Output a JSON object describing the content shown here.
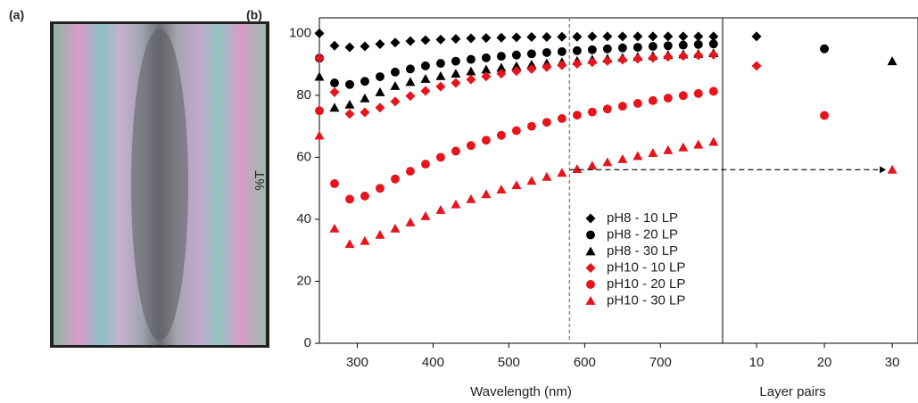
{
  "panel_labels": [
    "(a)",
    "(b)"
  ],
  "chart_data": [
    {
      "type": "scatter",
      "xlabel": "Wavelength (nm)",
      "ylabel": "%T",
      "x": [
        250,
        270,
        290,
        310,
        330,
        350,
        370,
        390,
        410,
        430,
        450,
        470,
        490,
        510,
        530,
        550,
        570,
        590,
        610,
        630,
        650,
        670,
        690,
        710,
        730,
        750,
        770
      ],
      "xlim": [
        250,
        782
      ],
      "ylim": [
        0,
        105
      ],
      "xticks": [
        300,
        400,
        500,
        600,
        700
      ],
      "yticks": [
        0,
        20,
        40,
        60,
        80,
        100
      ],
      "vline_x": 580,
      "arrow_y": 56,
      "series": [
        {
          "name": "pH8 - 10 LP",
          "color": "#000000",
          "marker": "diamond",
          "values": [
            100,
            96,
            95.5,
            95.8,
            96.5,
            97,
            97.5,
            97.8,
            98,
            98.2,
            98.4,
            98.5,
            98.6,
            98.7,
            98.8,
            98.8,
            98.9,
            98.9,
            99,
            99,
            99,
            99,
            99,
            99,
            99,
            99,
            99
          ]
        },
        {
          "name": "pH8 - 20 LP",
          "color": "#000000",
          "marker": "circle",
          "values": [
            92,
            84,
            83.5,
            84.5,
            86,
            87.5,
            88.5,
            89.5,
            90.3,
            91,
            91.6,
            92.1,
            92.6,
            93,
            93.4,
            93.8,
            94.1,
            94.4,
            94.7,
            95,
            95.3,
            95.5,
            95.8,
            96,
            96.2,
            96.4,
            96.6
          ]
        },
        {
          "name": "pH8 - 30 LP",
          "color": "#000000",
          "marker": "triangle",
          "values": [
            86,
            76,
            77,
            79,
            81,
            83,
            84.3,
            85.3,
            86.2,
            87,
            87.7,
            88.3,
            88.9,
            89.4,
            89.9,
            90.3,
            90.7,
            91.1,
            91.5,
            91.8,
            92.1,
            92.4,
            92.7,
            93,
            93.2,
            93.4,
            93.6
          ]
        },
        {
          "name": "pH10 - 10 LP",
          "color": "#e8141b",
          "marker": "diamond",
          "values": [
            92,
            81,
            74,
            74.5,
            76,
            78,
            79.8,
            81.4,
            82.8,
            84,
            85.1,
            86.1,
            87,
            87.8,
            88.5,
            89.1,
            89.7,
            90.2,
            90.7,
            91.1,
            91.5,
            91.8,
            92.1,
            92.4,
            92.7,
            92.9,
            93.1
          ]
        },
        {
          "name": "pH10 - 20 LP",
          "color": "#e8141b",
          "marker": "circle",
          "values": [
            75,
            51.5,
            46.5,
            47.5,
            50,
            53,
            55.5,
            57.8,
            60,
            62,
            63.8,
            65.5,
            67.1,
            68.6,
            70,
            71.3,
            72.5,
            73.6,
            74.6,
            75.6,
            76.5,
            77.4,
            78.3,
            79.1,
            79.9,
            80.6,
            81.3
          ]
        },
        {
          "name": "pH10 - 30 LP",
          "color": "#e8141b",
          "marker": "triangle",
          "values": [
            67,
            37,
            32,
            33,
            35,
            37,
            39,
            41,
            43,
            44.8,
            46.5,
            48.1,
            49.6,
            51,
            52.4,
            53.7,
            55,
            56.2,
            57.3,
            58.4,
            59.4,
            60.4,
            61.4,
            62.3,
            63.2,
            64.1,
            65
          ]
        }
      ]
    },
    {
      "type": "scatter",
      "xlabel": "Layer pairs",
      "xlim": [
        5,
        33.8
      ],
      "ylim": [
        0,
        105
      ],
      "xticks": [
        10,
        20,
        30
      ],
      "series": [
        {
          "color": "#000000",
          "marker": "diamond",
          "x": [
            10
          ],
          "values": [
            99
          ]
        },
        {
          "color": "#000000",
          "marker": "circle",
          "x": [
            20
          ],
          "values": [
            95
          ]
        },
        {
          "color": "#000000",
          "marker": "triangle",
          "x": [
            30
          ],
          "values": [
            91
          ]
        },
        {
          "color": "#e8141b",
          "marker": "diamond",
          "x": [
            10
          ],
          "values": [
            89.5
          ]
        },
        {
          "color": "#e8141b",
          "marker": "circle",
          "x": [
            20
          ],
          "values": [
            73.5
          ]
        },
        {
          "color": "#e8141b",
          "marker": "triangle",
          "x": [
            30
          ],
          "values": [
            56
          ]
        }
      ]
    }
  ]
}
